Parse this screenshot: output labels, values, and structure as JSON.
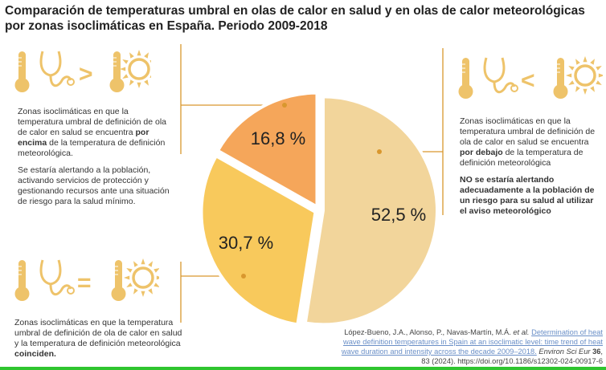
{
  "title": "Comparación de temperaturas umbral en olas de calor en salud y en olas de calor meteorológicas por zonas isoclimáticas en España. Periodo 2009-2018",
  "panels": {
    "above": {
      "symbol": ">",
      "t1": "Zonas isoclimáticas en que la temperatura umbral de definición de ola de calor en salud se encuentra ",
      "b1": "por encima",
      "t2": " de la temperatura de definición meteorológica.",
      "p2": "Se estaría alertando a la población, activando servicios de protección y gestionando recursos ante una situación de riesgo para la salud mínimo."
    },
    "below": {
      "symbol": "<",
      "t1": "Zonas isoclimáticas en que la temperatura umbral de definición de ola de calor en salud se encuentra ",
      "b1": "por debajo",
      "t2": " de la temperatura de definición meteorológica",
      "p2": "NO se estaría alertando adecuadamente a la población de un riesgo para su salud al utilizar el aviso meteorológico"
    },
    "equal": {
      "symbol": "=",
      "t1": "Zonas isoclimáticas en que la temperatura umbral de definición de ola de calor en salud y la temperatura de definición meteorológica ",
      "b1": "coinciden."
    }
  },
  "chart_data": {
    "type": "pie",
    "title": "",
    "slices": [
      {
        "label": "52,5 %",
        "value": 52.5,
        "category": "below",
        "color": "#f2d59b"
      },
      {
        "label": "30,7 %",
        "value": 30.7,
        "category": "equal",
        "color": "#f8c95c"
      },
      {
        "label": "16,8 %",
        "value": 16.8,
        "category": "above",
        "color": "#f5a65a"
      }
    ]
  },
  "citation": {
    "authors": "López-Bueno, J.A., Alonso, P., Navas-Martín, M.Á. ",
    "etal": "et al.",
    "link": "Determination of heat wave definition temperatures in Spain at an isoclimatic level: time trend of heat wave duration and intensity across the decade 2009–2018.",
    "journal": "Environ Sci Eur",
    "volume": "36",
    "rest": ", 83 (2024). https://doi.org/10.1186/s12302-024-00917-6"
  },
  "colors": {
    "accent": "#d9972e",
    "icon": "#eec36a"
  }
}
